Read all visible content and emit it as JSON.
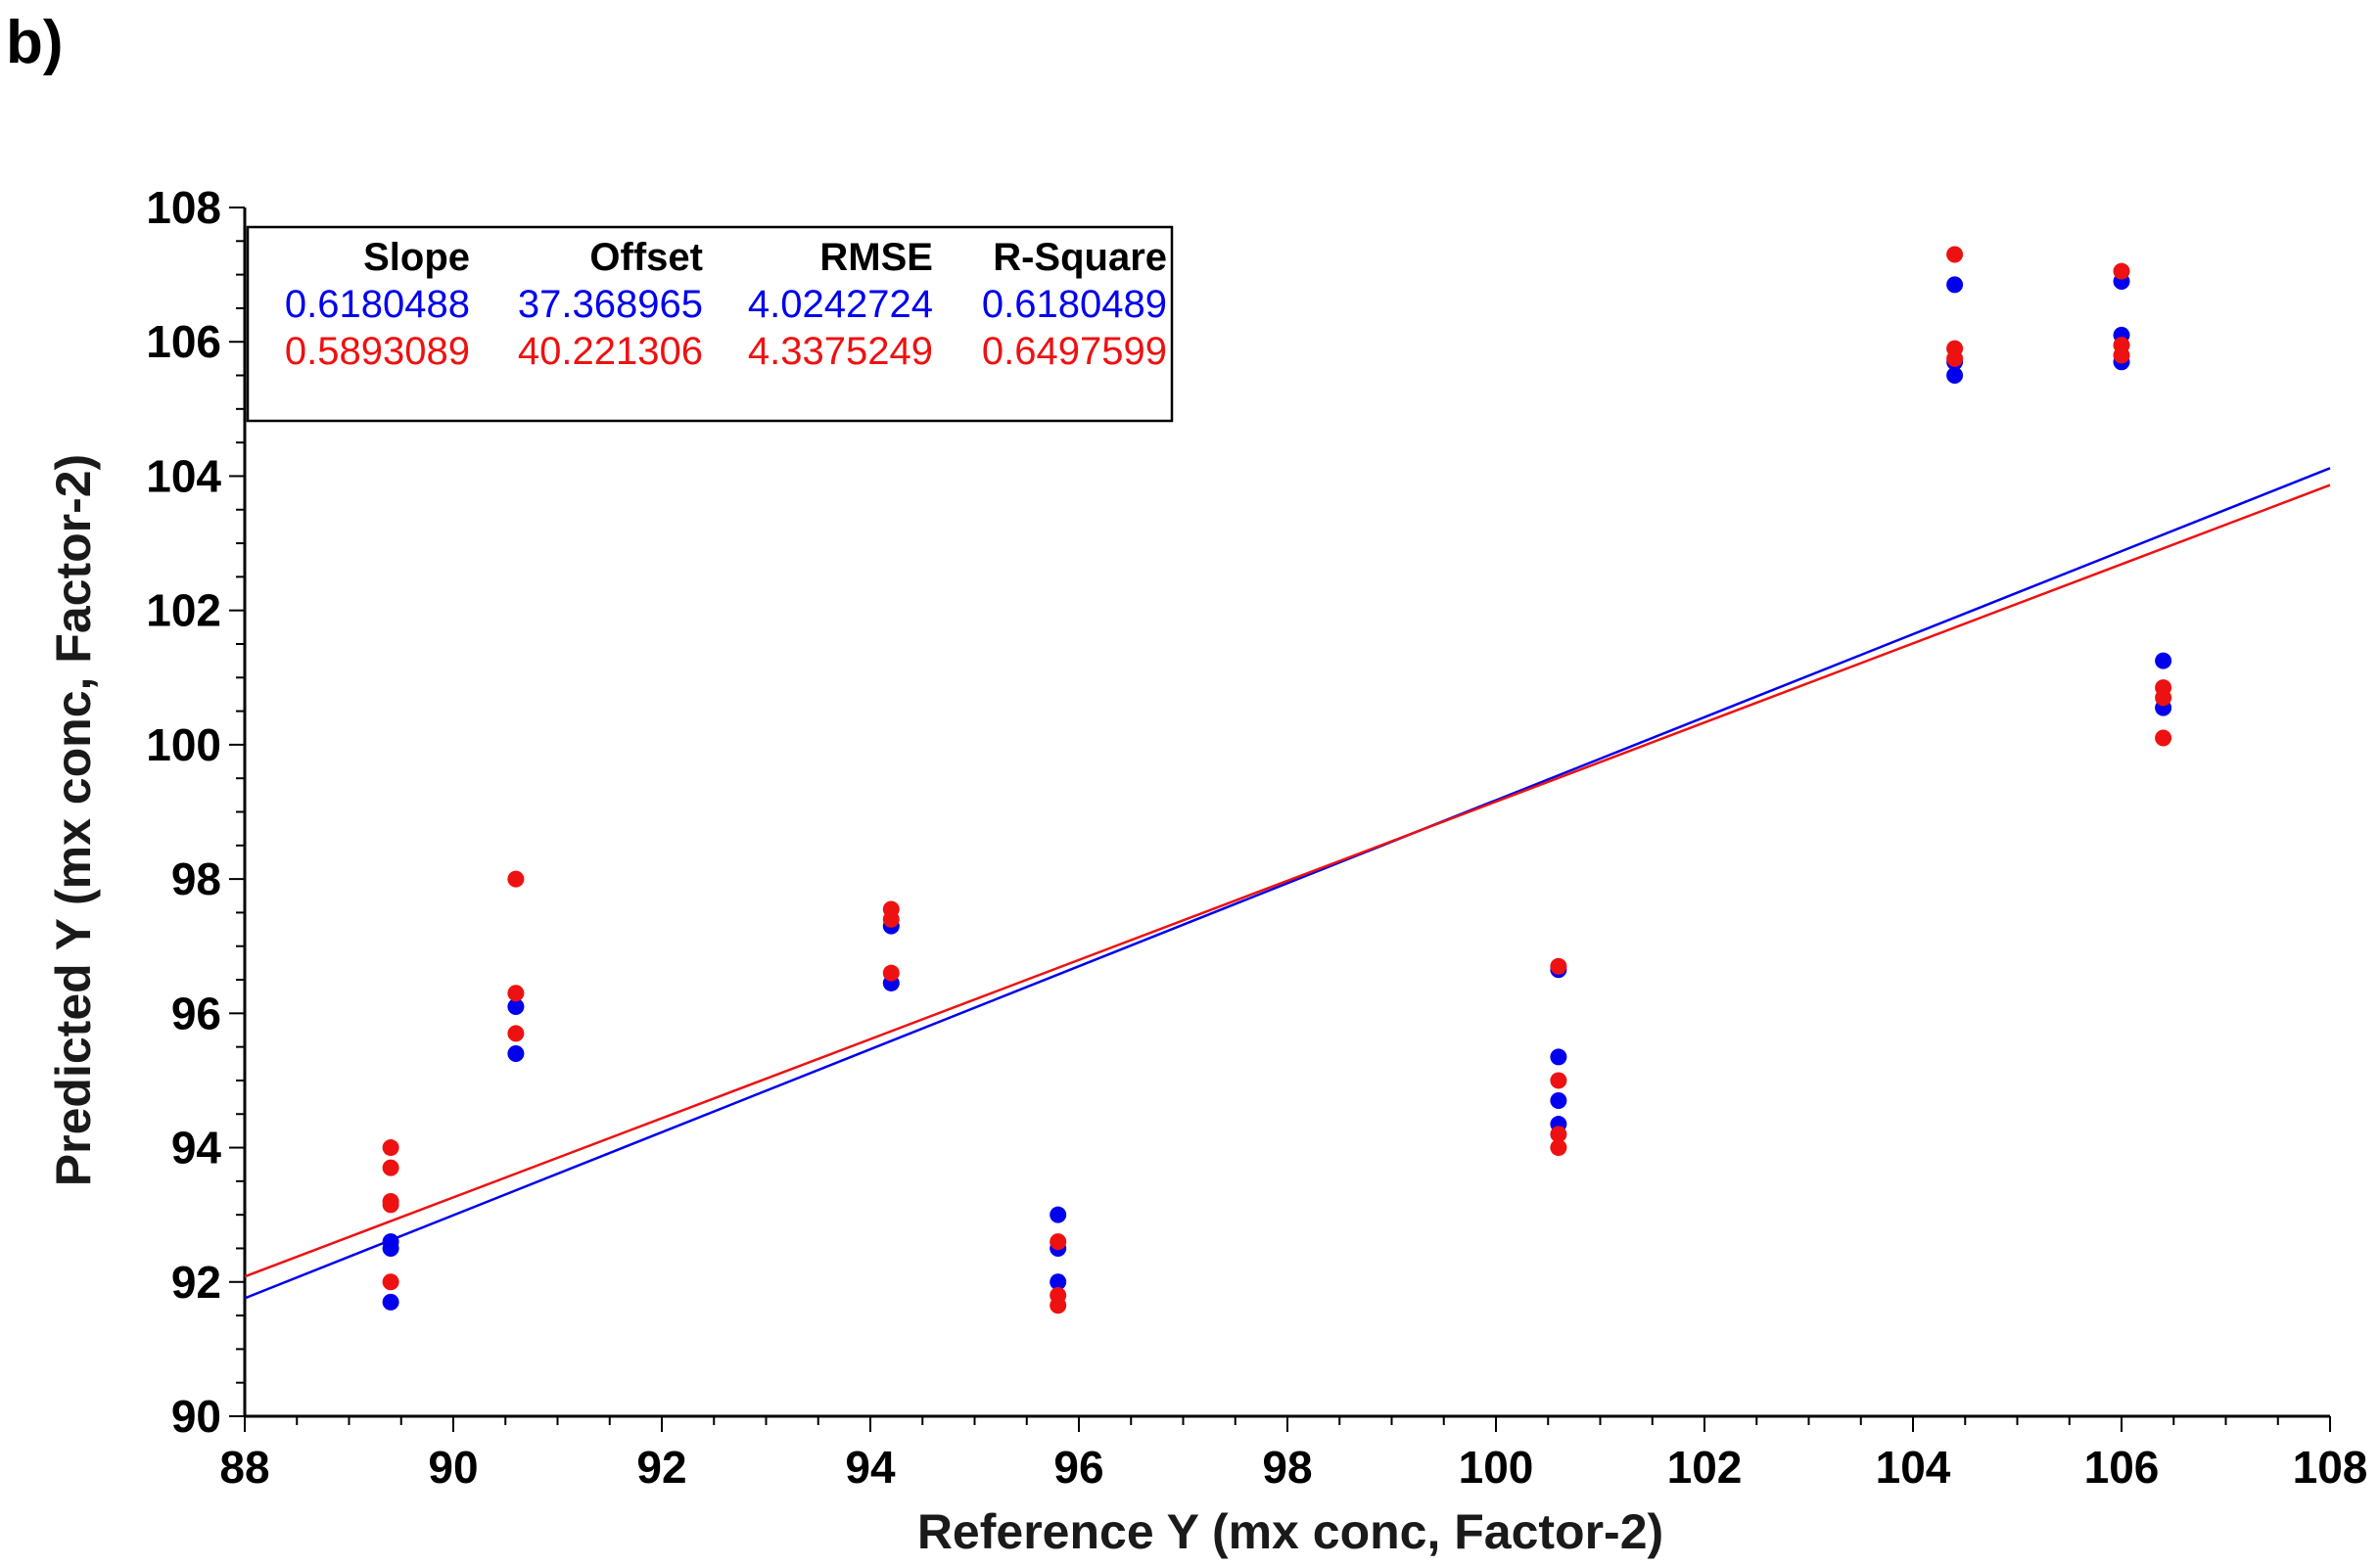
{
  "panel_label": "b)",
  "chart_data": {
    "type": "scatter",
    "xlabel": "Reference Y (mx conc, Factor-2)",
    "ylabel": "Predicted Y (mx conc, Factor-2)",
    "xlim": [
      88,
      108
    ],
    "ylim": [
      90,
      108
    ],
    "xticks": [
      88,
      90,
      92,
      94,
      96,
      98,
      100,
      102,
      104,
      106,
      108
    ],
    "yticks": [
      90,
      92,
      94,
      96,
      98,
      100,
      102,
      104,
      106,
      108
    ],
    "grid": false,
    "legend": {
      "placement": "top-left",
      "headers": [
        "Slope",
        "Offset",
        "RMSE",
        "R-Square"
      ],
      "rows": [
        {
          "color": "#0000ee",
          "values": [
            "0.6180488",
            "37.368965",
            "4.0242724",
            "0.6180489"
          ]
        },
        {
          "color": "#ee1111",
          "values": [
            "0.5893089",
            "40.221306",
            "4.3375249",
            "0.6497599"
          ]
        }
      ]
    },
    "series": [
      {
        "name": "blue",
        "color": "#0000ee",
        "slope": 0.6180488,
        "offset": 37.368965,
        "points": [
          [
            89.4,
            92.6
          ],
          [
            89.4,
            92.5
          ],
          [
            89.4,
            91.7
          ],
          [
            90.6,
            96.1
          ],
          [
            90.6,
            95.4
          ],
          [
            94.2,
            97.3
          ],
          [
            94.2,
            96.45
          ],
          [
            95.8,
            93.0
          ],
          [
            95.8,
            92.5
          ],
          [
            95.8,
            92.0
          ],
          [
            100.6,
            96.65
          ],
          [
            100.6,
            95.35
          ],
          [
            100.6,
            94.7
          ],
          [
            100.6,
            94.35
          ],
          [
            104.4,
            106.85
          ],
          [
            104.4,
            105.7
          ],
          [
            104.4,
            105.5
          ],
          [
            106.0,
            106.9
          ],
          [
            106.0,
            106.1
          ],
          [
            106.0,
            105.7
          ],
          [
            106.4,
            101.25
          ],
          [
            106.4,
            100.55
          ]
        ]
      },
      {
        "name": "red",
        "color": "#ee1111",
        "slope": 0.5893089,
        "offset": 40.221306,
        "points": [
          [
            89.4,
            94.0
          ],
          [
            89.4,
            93.7
          ],
          [
            89.4,
            93.2
          ],
          [
            89.4,
            93.15
          ],
          [
            89.4,
            92.0
          ],
          [
            90.6,
            98.0
          ],
          [
            90.6,
            96.3
          ],
          [
            90.6,
            95.7
          ],
          [
            94.2,
            97.55
          ],
          [
            94.2,
            97.4
          ],
          [
            94.2,
            96.6
          ],
          [
            95.8,
            92.6
          ],
          [
            95.8,
            91.8
          ],
          [
            95.8,
            91.65
          ],
          [
            100.6,
            96.7
          ],
          [
            100.6,
            95.0
          ],
          [
            100.6,
            94.2
          ],
          [
            100.6,
            94.0
          ],
          [
            104.4,
            107.3
          ],
          [
            104.4,
            105.9
          ],
          [
            104.4,
            105.75
          ],
          [
            106.0,
            107.05
          ],
          [
            106.0,
            105.95
          ],
          [
            106.0,
            105.8
          ],
          [
            106.4,
            100.85
          ],
          [
            106.4,
            100.7
          ],
          [
            106.4,
            100.1
          ]
        ]
      }
    ]
  }
}
